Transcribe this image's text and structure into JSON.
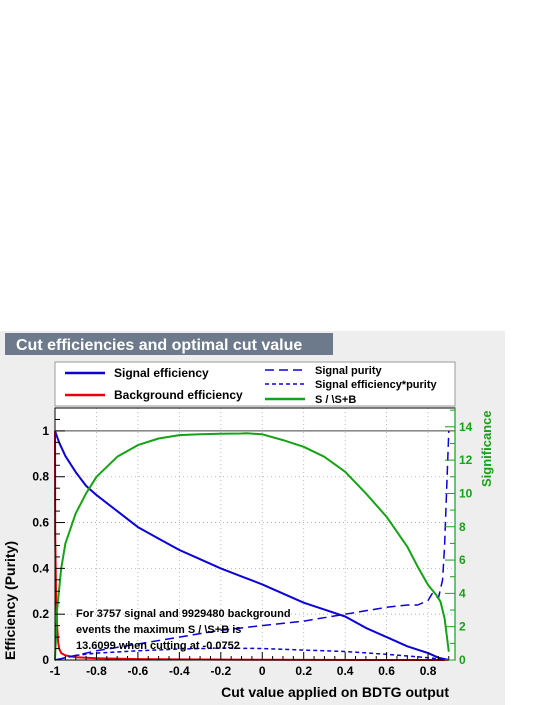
{
  "title": "Cut efficiencies and optimal cut value",
  "colors": {
    "panel_bg": "#eeeeee",
    "title_bg": "#6d7a8c",
    "title_fg": "#ffffff",
    "signal_eff": "#0b00d6",
    "background_eff": "#e8000b",
    "purity": "#0b00d6",
    "significance": "#16a216",
    "right_axis": "#16a216"
  },
  "legend": {
    "left": [
      {
        "label": "Signal efficiency",
        "style": "solid",
        "color": "#0b00d6"
      },
      {
        "label": "Background efficiency",
        "style": "solid",
        "color": "#e8000b"
      }
    ],
    "right": [
      {
        "label": "Signal purity",
        "style": "long-dash",
        "color": "#0b00d6"
      },
      {
        "label": "Signal efficiency*purity",
        "style": "short-dash",
        "color": "#0b00d6"
      },
      {
        "label": "S / \\S+B",
        "style": "solid",
        "color": "#16a216"
      }
    ]
  },
  "annotation": {
    "lines": [
      "For 3757 signal and 9929480 background",
      "events the maximum S / \\S+B is",
      "13.6099 when cutting at -0.0752"
    ]
  },
  "chart_data": {
    "type": "line",
    "title": "Cut efficiencies and optimal cut value",
    "xlabel": "Cut value applied on BDTG output",
    "ylabel": "Efficiency (Purity)",
    "y2label": "Significance",
    "xlim": [
      -1.0,
      0.93
    ],
    "ylim": [
      0,
      1.1
    ],
    "y2lim": [
      0,
      15.13
    ],
    "x_ticks": [
      -1,
      -0.8,
      -0.6,
      -0.4,
      -0.2,
      0,
      0.2,
      0.4,
      0.6,
      0.8
    ],
    "x_tick_labels": [
      "-1",
      "-0.8",
      "-0.6",
      "-0.4",
      "-0.2",
      "0",
      "0.2",
      "0.4",
      "0.6",
      "0.8"
    ],
    "y_ticks": [
      0,
      0.2,
      0.4,
      0.6,
      0.8,
      1
    ],
    "y_tick_labels": [
      "0",
      "0.2",
      "0.4",
      "0.6",
      "0.8",
      "1"
    ],
    "y2_ticks": [
      0,
      2,
      4,
      6,
      8,
      10,
      12,
      14
    ],
    "y2_tick_labels": [
      "0",
      "2",
      "4",
      "6",
      "8",
      "10",
      "12",
      "14"
    ],
    "grid": true,
    "reference_line_y": 1.0,
    "series": [
      {
        "name": "Signal efficiency",
        "axis": "left",
        "color": "#0b00d6",
        "dash": "solid",
        "x": [
          -1.0,
          -0.98,
          -0.95,
          -0.9,
          -0.85,
          -0.8,
          -0.7,
          -0.6,
          -0.5,
          -0.4,
          -0.3,
          -0.2,
          -0.1,
          0.0,
          0.1,
          0.2,
          0.3,
          0.4,
          0.5,
          0.6,
          0.7,
          0.8,
          0.85,
          0.9
        ],
        "y": [
          1.0,
          0.95,
          0.89,
          0.82,
          0.76,
          0.72,
          0.65,
          0.58,
          0.53,
          0.48,
          0.44,
          0.4,
          0.365,
          0.33,
          0.29,
          0.25,
          0.22,
          0.19,
          0.14,
          0.1,
          0.06,
          0.03,
          0.01,
          0.0
        ]
      },
      {
        "name": "Background efficiency",
        "axis": "left",
        "color": "#e8000b",
        "dash": "solid",
        "x": [
          -1.0,
          -0.999,
          -0.995,
          -0.99,
          -0.985,
          -0.98,
          -0.97,
          -0.95,
          -0.9,
          -0.8,
          -0.6,
          -0.3,
          0.0,
          0.5,
          0.9
        ],
        "y": [
          1.0,
          0.55,
          0.3,
          0.15,
          0.08,
          0.05,
          0.03,
          0.02,
          0.012,
          0.008,
          0.004,
          0.002,
          0.001,
          0.0,
          0.0
        ]
      },
      {
        "name": "Signal purity",
        "axis": "left",
        "color": "#0b00d6",
        "dash": "long-dash",
        "x": [
          -1.0,
          -0.9,
          -0.8,
          -0.6,
          -0.4,
          -0.2,
          0.0,
          0.2,
          0.4,
          0.6,
          0.7,
          0.75,
          0.8,
          0.82,
          0.85,
          0.86,
          0.87,
          0.88,
          0.9
        ],
        "y": [
          0.0,
          0.02,
          0.04,
          0.07,
          0.1,
          0.13,
          0.15,
          0.17,
          0.2,
          0.23,
          0.24,
          0.24,
          0.26,
          0.29,
          0.27,
          0.31,
          0.35,
          0.5,
          1.0
        ]
      },
      {
        "name": "Signal efficiency*purity",
        "axis": "left",
        "color": "#0b00d6",
        "dash": "short-dash",
        "x": [
          -1.0,
          -0.9,
          -0.8,
          -0.6,
          -0.4,
          -0.2,
          0.0,
          0.2,
          0.4,
          0.6,
          0.8,
          0.9
        ],
        "y": [
          0.0,
          0.02,
          0.03,
          0.04,
          0.048,
          0.052,
          0.05,
          0.043,
          0.037,
          0.025,
          0.01,
          0.0
        ]
      },
      {
        "name": "S / \\S+B",
        "axis": "right",
        "color": "#16a216",
        "dash": "solid",
        "x": [
          -1.0,
          -0.99,
          -0.97,
          -0.95,
          -0.9,
          -0.85,
          -0.8,
          -0.7,
          -0.6,
          -0.5,
          -0.4,
          -0.3,
          -0.2,
          -0.1,
          -0.0752,
          0.0,
          0.1,
          0.2,
          0.3,
          0.4,
          0.5,
          0.6,
          0.7,
          0.75,
          0.8,
          0.82,
          0.84,
          0.86,
          0.88,
          0.9
        ],
        "y": [
          0.0,
          3.0,
          5.5,
          7.0,
          8.8,
          10.0,
          11.0,
          12.2,
          12.9,
          13.3,
          13.5,
          13.55,
          13.58,
          13.6,
          13.61,
          13.55,
          13.2,
          12.8,
          12.2,
          11.3,
          10.0,
          8.6,
          6.8,
          5.6,
          4.5,
          4.2,
          3.9,
          3.5,
          2.5,
          0.5
        ]
      }
    ]
  }
}
